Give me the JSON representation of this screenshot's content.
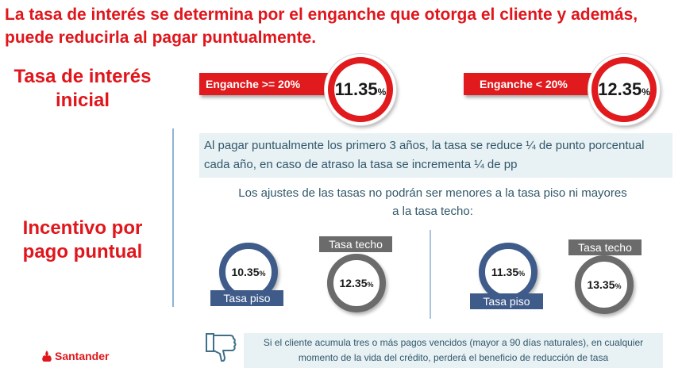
{
  "headline": "La tasa de interés se determina por el enganche que otorga el cliente y además, puede reducirla al pagar puntualmente.",
  "initial_rate": {
    "title": "Tasa de interés inicial",
    "options": [
      {
        "label": "Enganche >= 20%",
        "rate": "11.35",
        "unit": "%"
      },
      {
        "label": "Enganche < 20%",
        "rate": "12.35",
        "unit": "%"
      }
    ]
  },
  "incentive": {
    "title": "Incentivo por pago puntual",
    "info": "Al pagar puntualmente los primero 3 años, la tasa se reduce ¼ de punto porcentual cada año, en caso de atraso la tasa se incrementa ¼ de pp",
    "limits_text": "Los ajustes de las tasas no podrán ser menores a la tasa piso ni mayores a la tasa techo:",
    "scenarios": [
      {
        "floor_label": "Tasa piso",
        "floor_rate": "10.35",
        "ceiling_label": "Tasa techo",
        "ceiling_rate": "12.35",
        "unit": "%"
      },
      {
        "floor_label": "Tasa piso",
        "floor_rate": "11.35",
        "ceiling_label": "Tasa techo",
        "ceiling_rate": "13.35",
        "unit": "%"
      }
    ],
    "warning": "Si el cliente acumula tres o más pagos vencidos (mayor a 90 días naturales), en cualquier momento de la vida del crédito, perderá el beneficio de reducción de tasa"
  },
  "brand": {
    "name": "Santander",
    "icon": "santander-flame-icon",
    "color": "#e0161c"
  },
  "icons": {
    "warning": "thumbs-down-icon"
  },
  "colors": {
    "accent": "#e0161c",
    "floor": "#3f5b8a",
    "ceiling": "#6b6b6b",
    "text": "#31586b"
  }
}
